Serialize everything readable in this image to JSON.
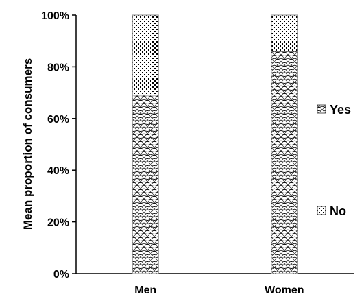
{
  "chart_data": {
    "type": "bar",
    "stacked": true,
    "categories": [
      "Men",
      "Women"
    ],
    "series": [
      {
        "name": "Yes",
        "values": [
          69,
          86
        ],
        "pattern": "crosshatch-wave",
        "color": "#000000"
      },
      {
        "name": "No",
        "values": [
          31,
          14
        ],
        "pattern": "dotted",
        "color": "#000000"
      }
    ],
    "title": "",
    "xlabel": "",
    "ylabel": "Mean proportion of consumers",
    "ylim": [
      0,
      100
    ],
    "yticks": [
      "0%",
      "20%",
      "40%",
      "60%",
      "80%",
      "100%"
    ],
    "grid": false,
    "legend": "right"
  }
}
